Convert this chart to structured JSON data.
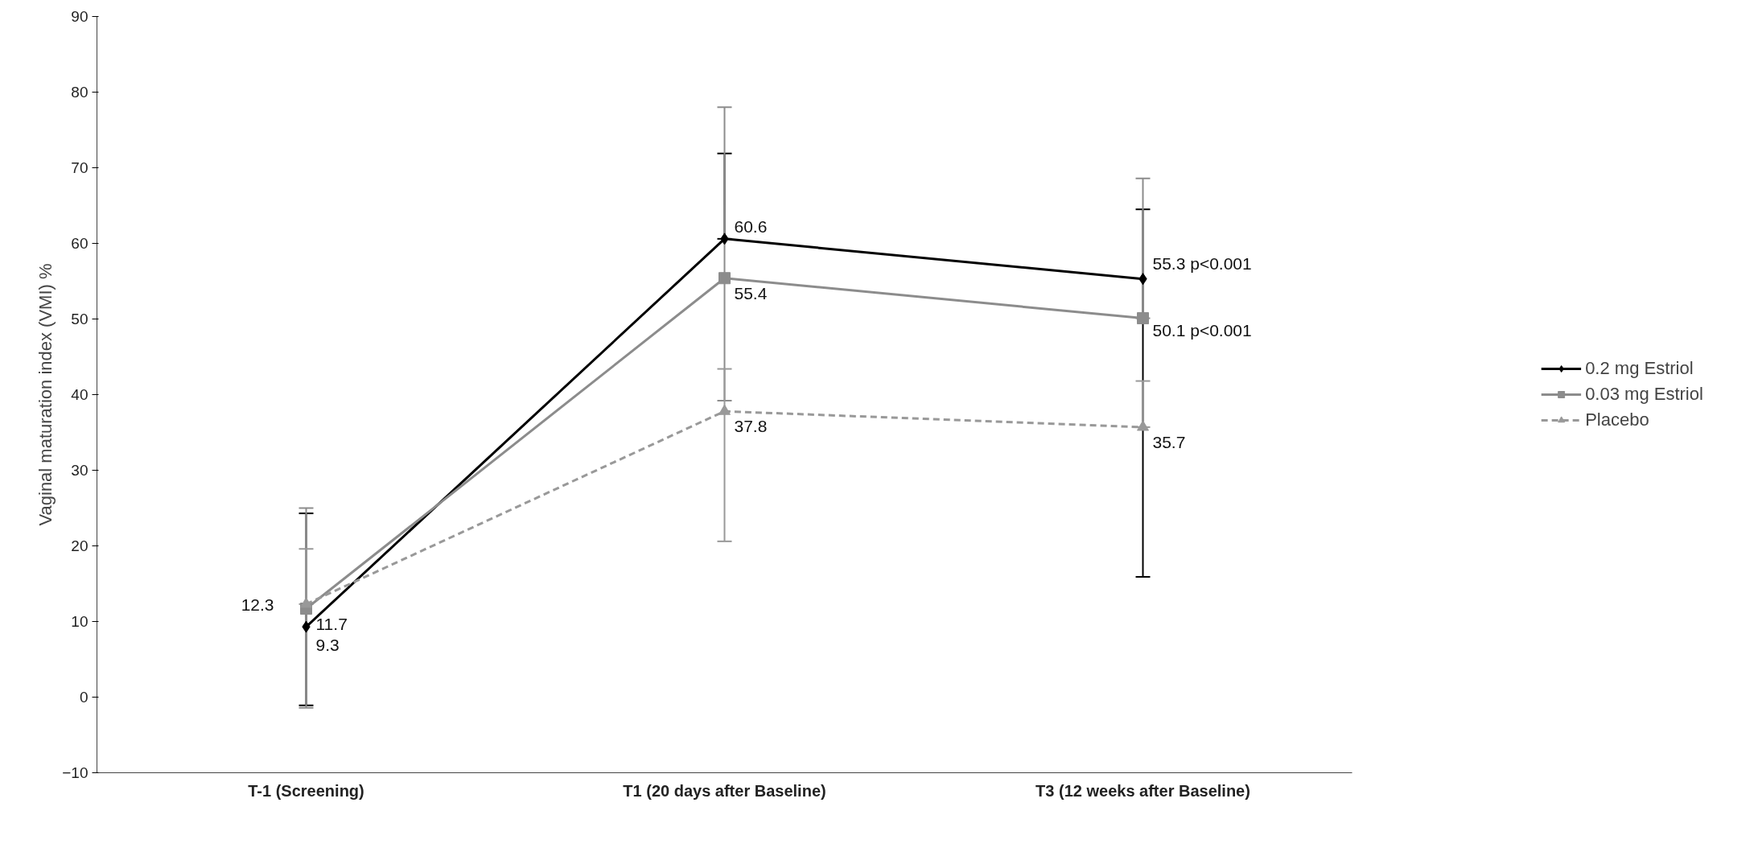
{
  "chart_data": {
    "type": "line",
    "ylabel": "Vaginal maturation index (VMI) %",
    "categories": [
      "T-1 (Screening)",
      "T1 (20 days after Baseline)",
      "T3 (12 weeks after Baseline)"
    ],
    "ylim": [
      -10,
      90
    ],
    "yticks": [
      -10,
      0,
      10,
      20,
      30,
      40,
      50,
      60,
      70,
      80,
      90
    ],
    "grid": false,
    "legend": "right",
    "series": [
      {
        "name": "0.2 mg Estriol",
        "color": "#000000",
        "marker": "diamond",
        "line_style": "solid",
        "values": [
          9.3,
          60.6,
          55.3
        ],
        "value_labels": [
          "9.3",
          "60.6",
          "55.3 p<0.001"
        ],
        "errors": [
          [
            -1.1,
            24.3
          ],
          [
            60.6,
            71.9
          ],
          [
            15.9,
            64.5
          ]
        ]
      },
      {
        "name": "0.03 mg Estriol",
        "color": "#8c8c8c",
        "marker": "square",
        "line_style": "solid",
        "values": [
          11.7,
          55.4,
          50.1
        ],
        "value_labels": [
          "11.7",
          "55.4",
          "50.1 p<0.001"
        ],
        "errors": [
          [
            -1.4,
            25.0
          ],
          [
            39.2,
            78.0
          ],
          [
            50.1,
            68.6
          ]
        ]
      },
      {
        "name": "Placebo",
        "color": "#999999",
        "marker": "triangle",
        "line_style": "dashed",
        "values": [
          12.3,
          37.8,
          35.7
        ],
        "value_labels": [
          "12.3",
          "37.8",
          "35.7"
        ],
        "errors": [
          [
            12.3,
            19.6
          ],
          [
            20.6,
            43.4
          ],
          [
            35.7,
            41.8
          ]
        ]
      }
    ]
  }
}
